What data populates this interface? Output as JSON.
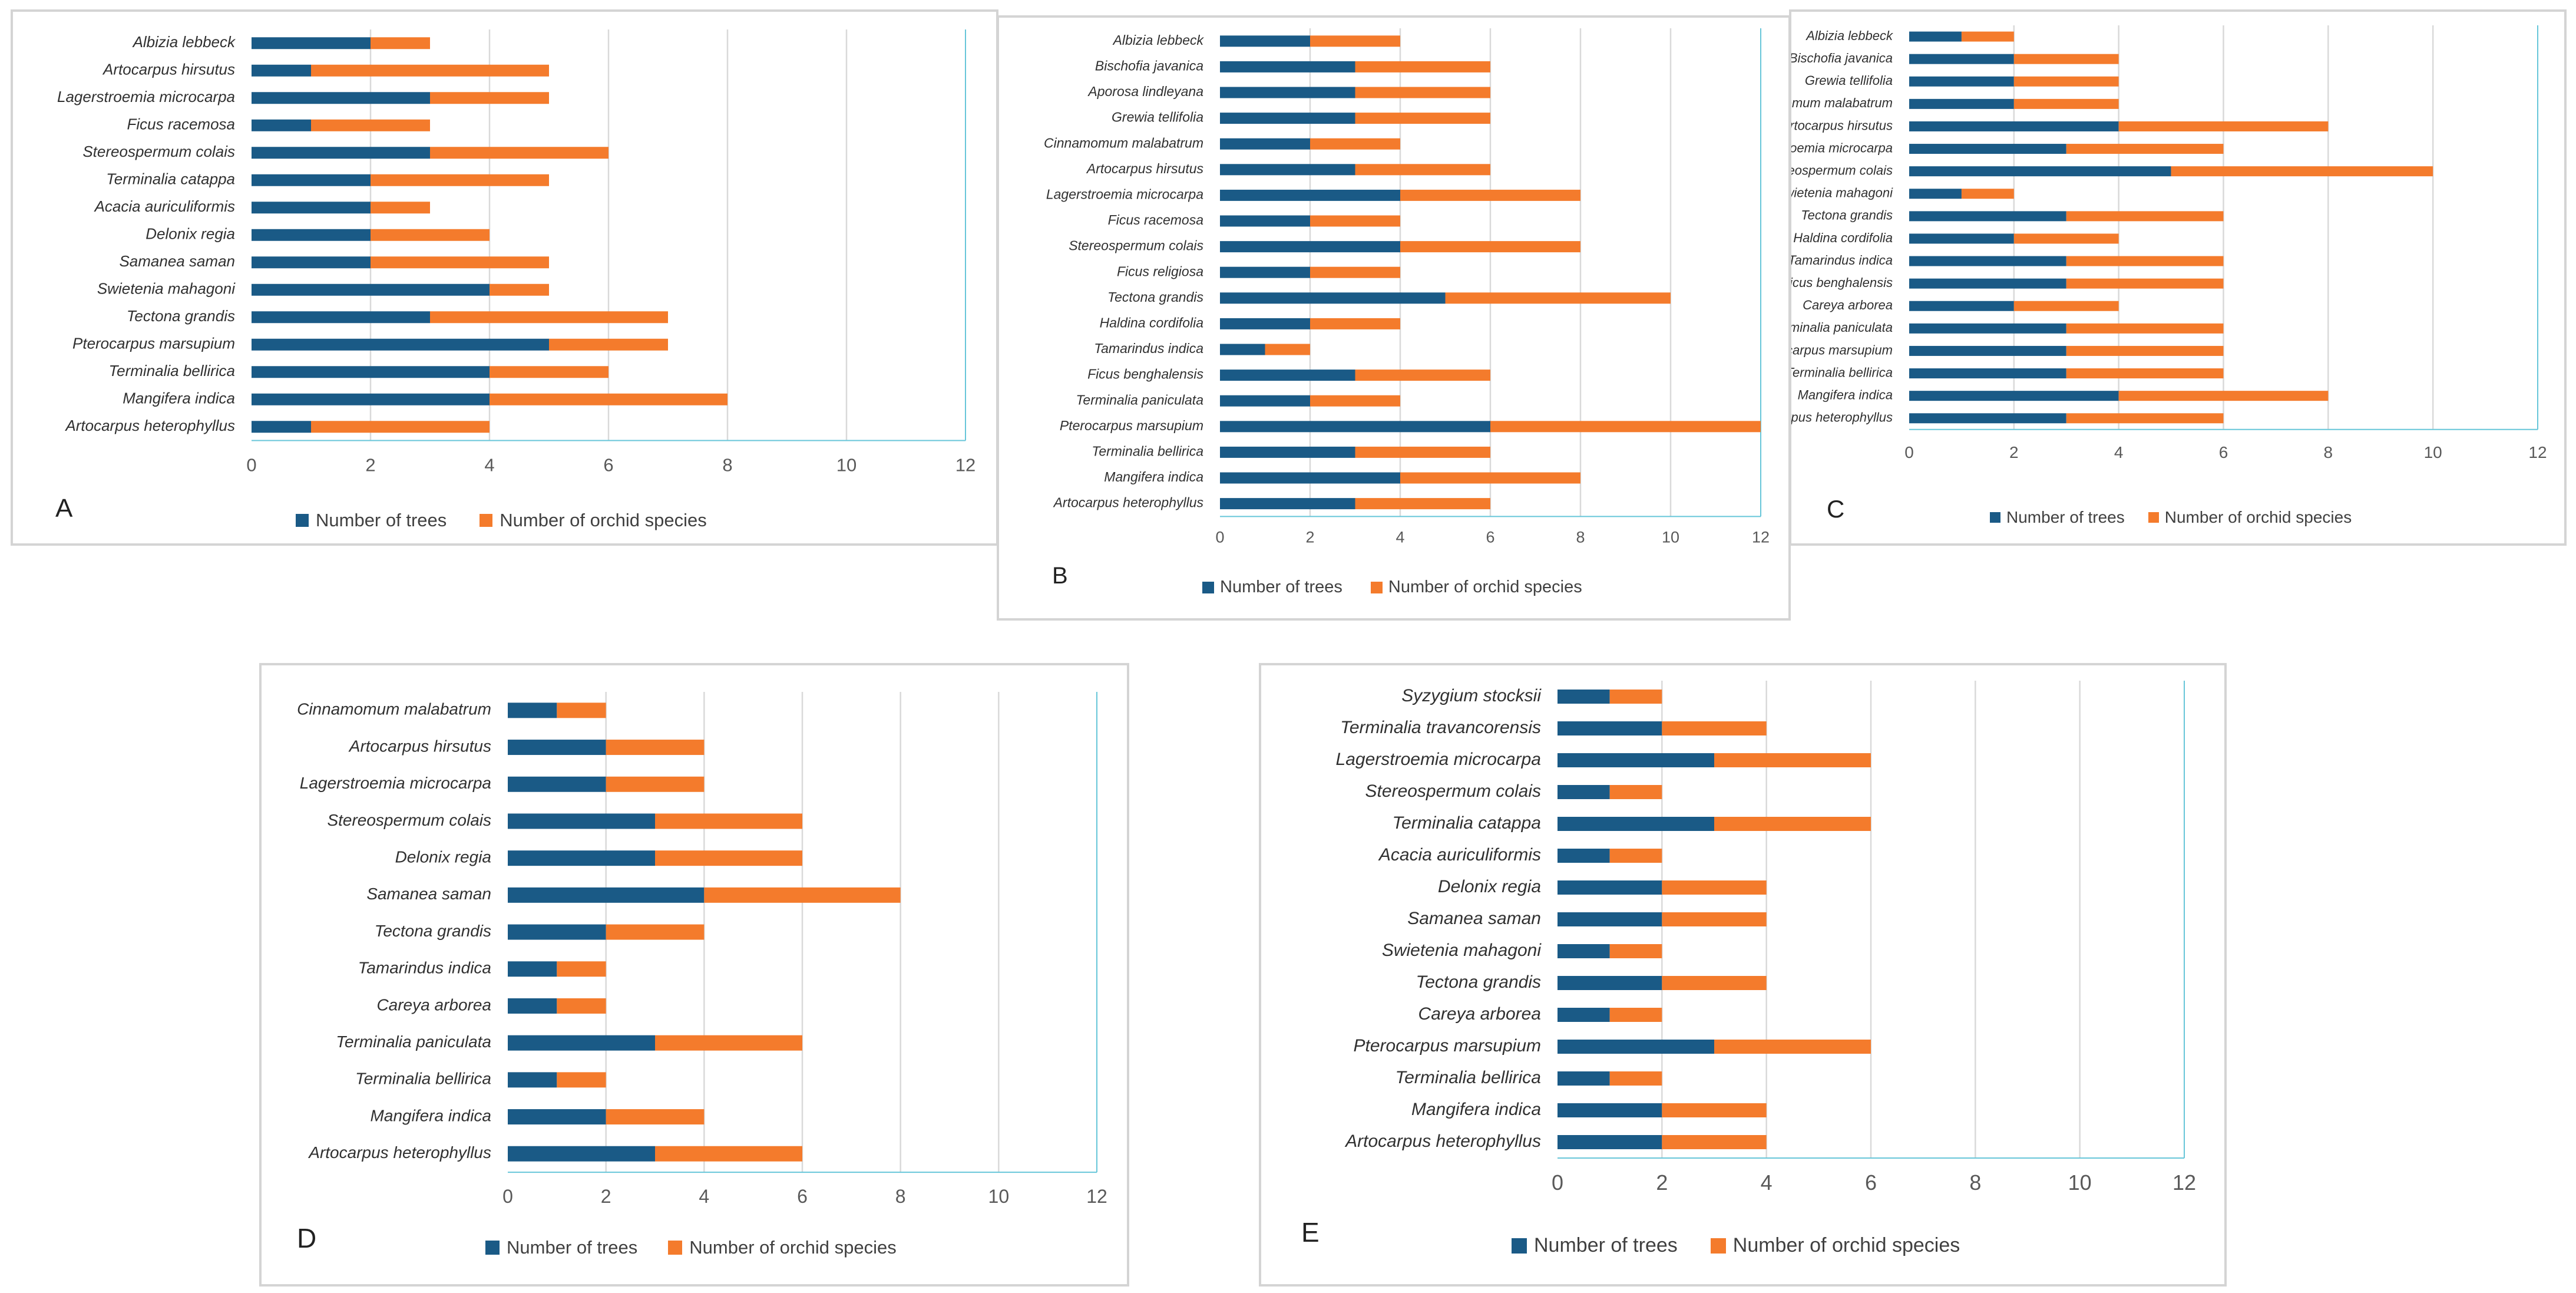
{
  "colors": {
    "trees": "#1a5a86",
    "orchids": "#f47b2c",
    "grid": "#d9d9d9",
    "axis": "#67c6d9",
    "label": "#303030"
  },
  "legend": {
    "trees": "Number of trees",
    "orchids": "Number of orchid species"
  },
  "chart_data": [
    {
      "type": "bar",
      "orientation": "horizontal",
      "stacked": true,
      "panel_label": "A",
      "xlim": [
        0,
        12
      ],
      "xticks": [
        "0",
        "2",
        "4",
        "6",
        "8",
        "10",
        "12"
      ],
      "categories": [
        "Albizia lebbeck",
        "Artocarpus hirsutus",
        "Lagerstroemia microcarpa",
        "Ficus racemosa",
        "Stereospermum colais",
        "Terminalia catappa",
        "Acacia auriculiformis",
        "Delonix regia",
        "Samanea saman",
        "Swietenia mahagoni",
        "Tectona grandis",
        "Pterocarpus marsupium",
        "Terminalia bellirica",
        "Mangifera indica",
        "Artocarpus heterophyllus"
      ],
      "series": [
        {
          "name": "Number of trees",
          "values": [
            2,
            1,
            3,
            1,
            3,
            2,
            2,
            2,
            2,
            4,
            3,
            5,
            4,
            4,
            1
          ]
        },
        {
          "name": "Number of orchid species",
          "values": [
            1,
            4,
            2,
            2,
            3,
            3,
            1,
            2,
            3,
            1,
            4,
            2,
            2,
            4,
            3
          ]
        }
      ]
    },
    {
      "type": "bar",
      "orientation": "horizontal",
      "stacked": true,
      "panel_label": "B",
      "xlim": [
        0,
        12
      ],
      "xticks": [
        "0",
        "2",
        "4",
        "6",
        "8",
        "10",
        "12"
      ],
      "categories": [
        "Albizia lebbeck",
        "Bischofia javanica",
        "Aporosa lindleyana",
        "Grewia tellifolia",
        "Cinnamomum malabatrum",
        "Artocarpus hirsutus",
        "Lagerstroemia microcarpa",
        "Ficus racemosa",
        "Stereospermum colais",
        "Ficus religiosa",
        "Tectona grandis",
        "Haldina cordifolia",
        "Tamarindus indica",
        "Ficus benghalensis",
        "Terminalia paniculata",
        "Pterocarpus marsupium",
        "Terminalia bellirica",
        "Mangifera indica",
        "Artocarpus heterophyllus"
      ],
      "series": [
        {
          "name": "Number of trees",
          "values": [
            2,
            3,
            3,
            3,
            2,
            3,
            4,
            2,
            4,
            2,
            5,
            2,
            1,
            3,
            2,
            6,
            3,
            4,
            3
          ]
        },
        {
          "name": "Number of orchid species",
          "values": [
            2,
            3,
            3,
            3,
            2,
            3,
            4,
            2,
            4,
            2,
            5,
            2,
            1,
            3,
            2,
            6,
            3,
            4,
            3
          ]
        }
      ]
    },
    {
      "type": "bar",
      "orientation": "horizontal",
      "stacked": true,
      "panel_label": "C",
      "xlim": [
        0,
        12
      ],
      "xticks": [
        "0",
        "2",
        "4",
        "6",
        "8",
        "10",
        "12"
      ],
      "categories": [
        "Albizia lebbeck",
        "Bischofia javanica",
        "Grewia tellifolia",
        "Cinnamomum malabatrum",
        "Artocarpus hirsutus",
        "Lagerstroemia microcarpa",
        "Stereospermum colais",
        "Swietenia mahagoni",
        "Tectona grandis",
        "Haldina cordifolia",
        "Tamarindus indica",
        "Ficus benghalensis",
        "Careya arborea",
        "Terminalia paniculata",
        "Pterocarpus marsupium",
        "Terminalia bellirica",
        "Mangifera indica",
        "Artocarpus heterophyllus"
      ],
      "series": [
        {
          "name": "Number of trees",
          "values": [
            1,
            2,
            2,
            2,
            4,
            3,
            5,
            1,
            3,
            2,
            3,
            3,
            2,
            3,
            3,
            3,
            4,
            3
          ]
        },
        {
          "name": "Number of orchid species",
          "values": [
            1,
            2,
            2,
            2,
            4,
            3,
            5,
            1,
            3,
            2,
            3,
            3,
            2,
            3,
            3,
            3,
            4,
            3
          ]
        }
      ]
    },
    {
      "type": "bar",
      "orientation": "horizontal",
      "stacked": true,
      "panel_label": "D",
      "xlim": [
        0,
        12
      ],
      "xticks": [
        "0",
        "2",
        "4",
        "6",
        "8",
        "10",
        "12"
      ],
      "categories": [
        "Cinnamomum malabatrum",
        "Artocarpus hirsutus",
        "Lagerstroemia microcarpa",
        "Stereospermum colais",
        "Delonix regia",
        "Samanea saman",
        "Tectona grandis",
        "Tamarindus indica",
        "Careya arborea",
        "Terminalia paniculata",
        "Terminalia bellirica",
        "Mangifera indica",
        "Artocarpus heterophyllus"
      ],
      "series": [
        {
          "name": "Number of trees",
          "values": [
            1,
            2,
            2,
            3,
            3,
            4,
            2,
            1,
            1,
            3,
            1,
            2,
            3
          ]
        },
        {
          "name": "Number of orchid species",
          "values": [
            1,
            2,
            2,
            3,
            3,
            4,
            2,
            1,
            1,
            3,
            1,
            2,
            3
          ]
        }
      ]
    },
    {
      "type": "bar",
      "orientation": "horizontal",
      "stacked": true,
      "panel_label": "E",
      "xlim": [
        0,
        12
      ],
      "xticks": [
        "0",
        "2",
        "4",
        "6",
        "8",
        "10",
        "12"
      ],
      "categories": [
        "Syzygium stocksii",
        "Terminalia travancorensis",
        "Lagerstroemia microcarpa",
        "Stereospermum colais",
        "Terminalia catappa",
        "Acacia auriculiformis",
        "Delonix regia",
        "Samanea saman",
        "Swietenia mahagoni",
        "Tectona grandis",
        "Careya arborea",
        "Pterocarpus marsupium",
        "Terminalia bellirica",
        "Mangifera indica",
        "Artocarpus heterophyllus"
      ],
      "series": [
        {
          "name": "Number of trees",
          "values": [
            1,
            2,
            3,
            1,
            3,
            1,
            2,
            2,
            1,
            2,
            1,
            3,
            1,
            2,
            2
          ]
        },
        {
          "name": "Number of orchid species",
          "values": [
            1,
            2,
            3,
            1,
            3,
            1,
            2,
            2,
            1,
            2,
            1,
            3,
            1,
            2,
            2
          ]
        }
      ]
    }
  ]
}
